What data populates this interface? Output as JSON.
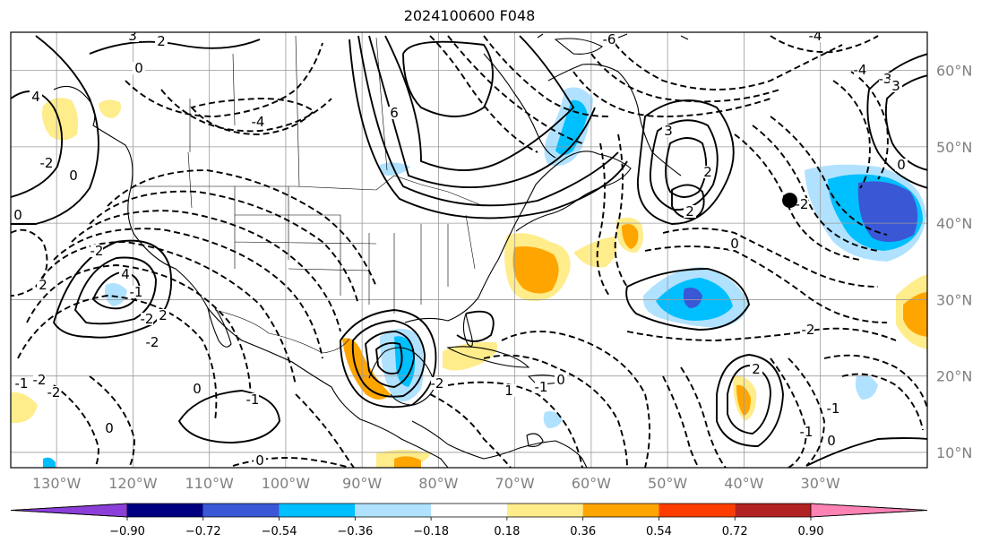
{
  "title": "2024100600 F048",
  "map": {
    "lon_labels": [
      "130°W",
      "120°W",
      "110°W",
      "100°W",
      "90°W",
      "80°W",
      "70°W",
      "60°W",
      "50°W",
      "40°W",
      "30°W"
    ],
    "lon_values": [
      -130,
      -120,
      -110,
      -100,
      -90,
      -80,
      -70,
      -60,
      -50,
      -40,
      -30
    ],
    "lat_labels": [
      "10°N",
      "20°N",
      "30°N",
      "40°N",
      "50°N",
      "60°N"
    ],
    "lat_values": [
      10,
      20,
      30,
      40,
      50,
      60
    ],
    "lon_range": [
      -136,
      -16
    ],
    "lat_range": [
      8,
      65
    ],
    "marker": {
      "lon": -34,
      "lat": 43
    }
  },
  "contour_labels": [
    "3",
    "2",
    "0",
    "4",
    "-4",
    "-6",
    "6",
    "-4",
    "0",
    "3",
    "2",
    "-2",
    "0",
    "-2",
    "4",
    "-2",
    "2",
    "-2",
    "-1",
    "2",
    "0",
    "-2",
    "-1",
    "-2",
    "0",
    "-1",
    "0",
    "-2",
    "1",
    "-1",
    "0",
    "2",
    "-2",
    "0",
    "-1",
    "0",
    "-4",
    "-3",
    "3",
    "0",
    "-2",
    "2",
    "-1"
  ],
  "colorbar": {
    "ticks": [
      "−0.90",
      "−0.72",
      "−0.54",
      "−0.36",
      "−0.18",
      "0.18",
      "0.36",
      "0.54",
      "0.72",
      "0.90"
    ],
    "colors": {
      "below": "#8b3fd8",
      "bins": [
        "#000080",
        "#3a57d6",
        "#00bfff",
        "#b0e2ff",
        "#ffffff",
        "#ffec8b",
        "#ffa500",
        "#ff3c00",
        "#b22222"
      ],
      "above": "#ff82b4"
    }
  }
}
